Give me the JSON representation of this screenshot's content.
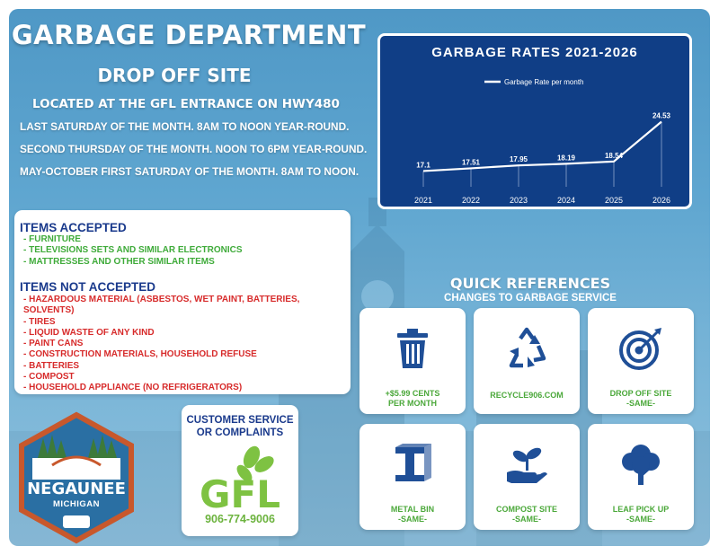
{
  "header": {
    "title": "GARBAGE DEPARTMENT",
    "subtitle": "DROP OFF SITE",
    "location": "LOCATED AT THE GFL ENTRANCE ON HWY480"
  },
  "schedule": [
    "LAST SATURDAY OF THE MONTH. 8AM TO NOON YEAR-ROUND.",
    "SECOND THURSDAY OF THE MONTH. NOON TO 6PM YEAR-ROUND.",
    "MAY-OCTOBER FIRST SATURDAY OF THE MONTH. 8AM TO NOON."
  ],
  "chart_data": {
    "type": "line",
    "title": "GARBAGE RATES 2021-2026",
    "categories": [
      "2021",
      "2022",
      "2023",
      "2024",
      "2025",
      "2026"
    ],
    "series": [
      {
        "name": "Garbage Rate per month",
        "values": [
          17.1,
          17.51,
          17.95,
          18.19,
          18.54,
          24.53
        ]
      }
    ],
    "data_labels": [
      "17.1",
      "17.51",
      "17.95",
      "18.19",
      "18.54",
      "24.53"
    ],
    "legend": "top-center",
    "line_color": "#ffffff",
    "background": "#103e86"
  },
  "items": {
    "accepted_heading": "ITEMS ACCEPTED",
    "accepted": [
      "- FURNITURE",
      "- TELEVISIONS SETS AND SIMILAR ELECTRONICS",
      "- MATTRESSES AND OTHER SIMILAR ITEMS"
    ],
    "not_accepted_heading": "ITEMS NOT ACCEPTED",
    "not_accepted": [
      "- HAZARDOUS MATERIAL (ASBESTOS, WET PAINT, BATTERIES, SOLVENTS)",
      "- TIRES",
      "- LIQUID WASTE OF ANY KIND",
      "- PAINT CANS",
      "- CONSTRUCTION MATERIALS, HOUSEHOLD REFUSE",
      "- BATTERIES",
      "- COMPOST",
      "- HOUSEHOLD APPLIANCE (NO REFRIGERATORS)"
    ]
  },
  "logo": {
    "name": "NEGAUNEE",
    "sub": "MICHIGAN",
    "icon": "negaunee-city-logo"
  },
  "customer_service": {
    "label_line1": "CUSTOMER SERVICE",
    "label_line2": "OR COMPLAINTS",
    "logo_text": "GFL",
    "phone": "906-774-9006"
  },
  "quick_references": {
    "title": "QUICK REFERENCES",
    "subtitle": "CHANGES TO GARBAGE SERVICE",
    "cards": [
      {
        "icon": "trash-can-icon",
        "line1": "+$5.99 CENTS",
        "line2": "PER MONTH"
      },
      {
        "icon": "recycle-icon",
        "line1": "RECYCLE906.COM",
        "line2": ""
      },
      {
        "icon": "target-icon",
        "line1": "DROP OFF SITE",
        "line2": "-SAME-"
      },
      {
        "icon": "steel-beam-icon",
        "line1": "METAL BIN",
        "line2": "-SAME-"
      },
      {
        "icon": "plant-hand-icon",
        "line1": "COMPOST SITE",
        "line2": "-SAME-"
      },
      {
        "icon": "tree-icon",
        "line1": "LEAF PICK UP",
        "line2": "-SAME-"
      }
    ]
  },
  "colors": {
    "navy": "#1a3a8c",
    "green": "#3fab3a",
    "red": "#d72b2b",
    "icon_blue": "#1f4f97"
  }
}
